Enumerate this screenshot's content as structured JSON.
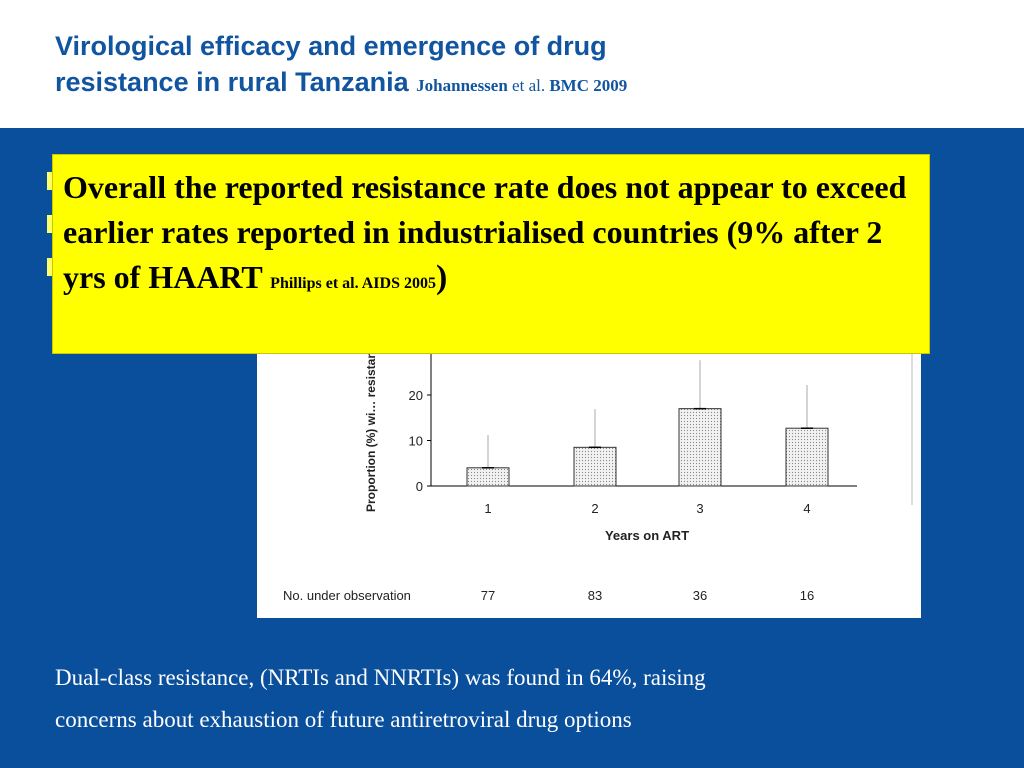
{
  "header": {
    "title_line1": "Virological efficacy and emergence of drug",
    "title_line2": "resistance in rural Tanzania",
    "cite_author": "Johannessen",
    "cite_etal": "et al.",
    "cite_journal": "BMC 2009"
  },
  "callout": {
    "text_main": "Overall the reported resistance rate does not appear to exceed earlier rates reported in industrialised countries (9% after 2 yrs of HAART",
    "text_ref": "Phillips et al. AIDS 2005",
    "text_close": ")"
  },
  "footer": {
    "line1": "Dual-class resistance, (NRTIs and NNRTIs) was found in 64%, raising",
    "line2": "concerns about exhaustion of future antiretroviral drug options"
  },
  "colors": {
    "header_bg": "#ffffff",
    "title": "#1155a0",
    "slide_bg": "#0a4f9c",
    "callout_bg": "#ffff00",
    "body_text": "#ffffff"
  },
  "chart_data": {
    "type": "bar",
    "ylabel": "Proportion (%) wi… resistance",
    "xlabel": "Years on ART",
    "categories": [
      "1",
      "2",
      "3",
      "4"
    ],
    "values": [
      4,
      8.5,
      17,
      12.7
    ],
    "yticks": [
      "0",
      "10",
      "20"
    ],
    "ylim": [
      0,
      30
    ],
    "error_bar": "upper whisker only",
    "table": {
      "row_label": "No. under observation",
      "values": [
        "77",
        "83",
        "36",
        "16"
      ]
    }
  }
}
